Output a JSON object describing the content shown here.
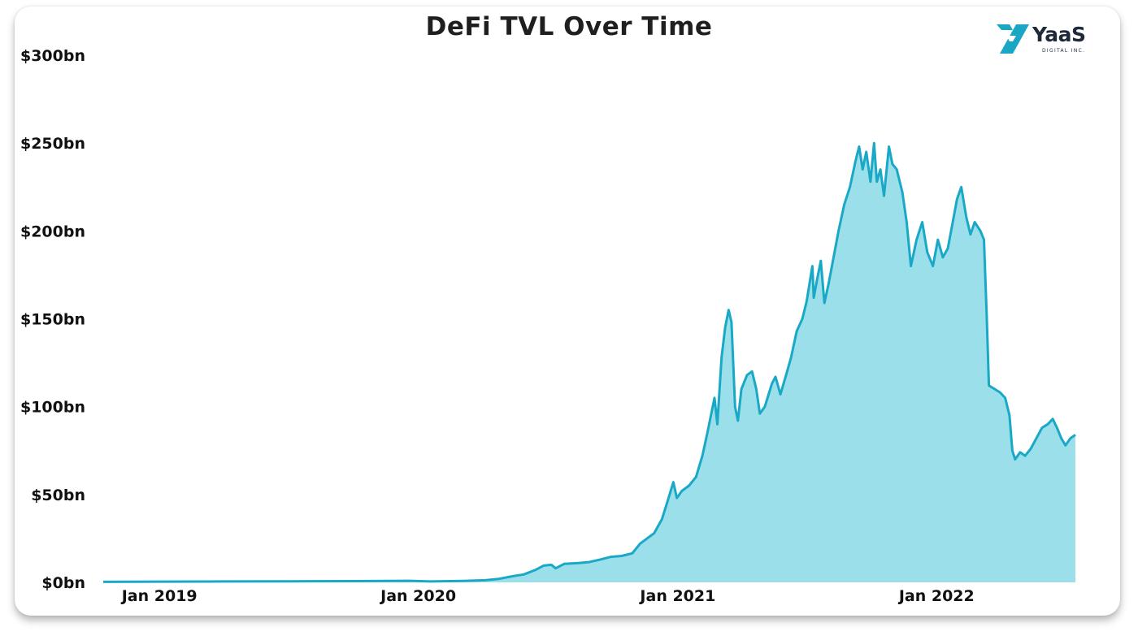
{
  "chart_data": {
    "type": "area",
    "title": "DeFi TVL Over Time",
    "xlabel": "",
    "ylabel": "",
    "ylim": [
      0,
      300
    ],
    "y_ticks": [
      0,
      50,
      100,
      150,
      200,
      250,
      300
    ],
    "y_tick_labels": [
      "$0bn",
      "$50bn",
      "$100bn",
      "$150bn",
      "$200bn",
      "$250bn",
      "$300bn"
    ],
    "x_ticks": [
      "2019-01-01",
      "2020-01-01",
      "2021-01-01",
      "2022-01-01"
    ],
    "x_tick_labels": [
      "Jan 2019",
      "Jan 2020",
      "Jan 2021",
      "Jan 2022"
    ],
    "xlim": [
      "2018-12-10",
      "2022-09-11"
    ],
    "grid": false,
    "legend": "none",
    "colors": {
      "line": "#19a9c6",
      "fill": "#9bdfea"
    },
    "series": [
      {
        "values": [
          [
            "2018-12-10",
            0.3
          ],
          [
            "2019-03-01",
            0.4
          ],
          [
            "2019-06-01",
            0.5
          ],
          [
            "2019-09-01",
            0.6
          ],
          [
            "2019-12-01",
            0.7
          ],
          [
            "2020-02-15",
            0.9
          ],
          [
            "2020-03-15",
            0.5
          ],
          [
            "2020-05-01",
            0.8
          ],
          [
            "2020-06-01",
            1.2
          ],
          [
            "2020-06-20",
            2.0
          ],
          [
            "2020-07-10",
            3.5
          ],
          [
            "2020-07-25",
            4.5
          ],
          [
            "2020-08-10",
            7.0
          ],
          [
            "2020-08-22",
            9.5
          ],
          [
            "2020-09-02",
            10.0
          ],
          [
            "2020-09-08",
            8.0
          ],
          [
            "2020-09-20",
            10.5
          ],
          [
            "2020-10-10",
            11.0
          ],
          [
            "2020-10-25",
            11.5
          ],
          [
            "2020-11-10",
            13.0
          ],
          [
            "2020-11-25",
            14.5
          ],
          [
            "2020-12-10",
            15.0
          ],
          [
            "2020-12-25",
            16.5
          ],
          [
            "2021-01-05",
            22.0
          ],
          [
            "2021-01-15",
            25.0
          ],
          [
            "2021-01-25",
            28.0
          ],
          [
            "2021-02-05",
            36.0
          ],
          [
            "2021-02-12",
            45.0
          ],
          [
            "2021-02-21",
            57.0
          ],
          [
            "2021-02-26",
            48.0
          ],
          [
            "2021-03-05",
            52.0
          ],
          [
            "2021-03-15",
            55.0
          ],
          [
            "2021-03-25",
            60.0
          ],
          [
            "2021-04-03",
            72.0
          ],
          [
            "2021-04-10",
            85.0
          ],
          [
            "2021-04-15",
            95.0
          ],
          [
            "2021-04-20",
            105.0
          ],
          [
            "2021-04-24",
            90.0
          ],
          [
            "2021-04-30",
            128.0
          ],
          [
            "2021-05-05",
            145.0
          ],
          [
            "2021-05-10",
            155.0
          ],
          [
            "2021-05-14",
            148.0
          ],
          [
            "2021-05-19",
            100.0
          ],
          [
            "2021-05-23",
            92.0
          ],
          [
            "2021-05-28",
            110.0
          ],
          [
            "2021-06-05",
            118.0
          ],
          [
            "2021-06-12",
            120.0
          ],
          [
            "2021-06-18",
            110.0
          ],
          [
            "2021-06-23",
            96.0
          ],
          [
            "2021-06-30",
            100.0
          ],
          [
            "2021-07-10",
            113.0
          ],
          [
            "2021-07-15",
            117.0
          ],
          [
            "2021-07-22",
            107.0
          ],
          [
            "2021-07-30",
            118.0
          ],
          [
            "2021-08-06",
            128.0
          ],
          [
            "2021-08-14",
            143.0
          ],
          [
            "2021-08-22",
            150.0
          ],
          [
            "2021-08-28",
            160.0
          ],
          [
            "2021-09-05",
            180.0
          ],
          [
            "2021-09-07",
            162.0
          ],
          [
            "2021-09-12",
            173.0
          ],
          [
            "2021-09-17",
            183.0
          ],
          [
            "2021-09-22",
            159.0
          ],
          [
            "2021-09-28",
            170.0
          ],
          [
            "2021-10-05",
            185.0
          ],
          [
            "2021-10-12",
            200.0
          ],
          [
            "2021-10-20",
            215.0
          ],
          [
            "2021-10-28",
            225.0
          ],
          [
            "2021-11-05",
            240.0
          ],
          [
            "2021-11-10",
            248.0
          ],
          [
            "2021-11-15",
            235.0
          ],
          [
            "2021-11-20",
            245.0
          ],
          [
            "2021-11-26",
            228.0
          ],
          [
            "2021-12-01",
            250.0
          ],
          [
            "2021-12-05",
            228.0
          ],
          [
            "2021-12-10",
            235.0
          ],
          [
            "2021-12-15",
            220.0
          ],
          [
            "2021-12-22",
            248.0
          ],
          [
            "2021-12-27",
            238.0
          ],
          [
            "2022-01-02",
            235.0
          ],
          [
            "2022-01-10",
            222.0
          ],
          [
            "2022-01-16",
            205.0
          ],
          [
            "2022-01-22",
            180.0
          ],
          [
            "2022-01-30",
            195.0
          ],
          [
            "2022-02-07",
            205.0
          ],
          [
            "2022-02-14",
            188.0
          ],
          [
            "2022-02-22",
            180.0
          ],
          [
            "2022-03-01",
            195.0
          ],
          [
            "2022-03-08",
            185.0
          ],
          [
            "2022-03-15",
            190.0
          ],
          [
            "2022-03-22",
            205.0
          ],
          [
            "2022-03-28",
            218.0
          ],
          [
            "2022-04-03",
            225.0
          ],
          [
            "2022-04-10",
            208.0
          ],
          [
            "2022-04-16",
            198.0
          ],
          [
            "2022-04-22",
            205.0
          ],
          [
            "2022-04-30",
            200.0
          ],
          [
            "2022-05-05",
            195.0
          ],
          [
            "2022-05-09",
            150.0
          ],
          [
            "2022-05-12",
            112.0
          ],
          [
            "2022-05-20",
            110.0
          ],
          [
            "2022-05-28",
            108.0
          ],
          [
            "2022-06-04",
            105.0
          ],
          [
            "2022-06-10",
            95.0
          ],
          [
            "2022-06-14",
            75.0
          ],
          [
            "2022-06-18",
            70.0
          ],
          [
            "2022-06-25",
            74.0
          ],
          [
            "2022-07-02",
            72.0
          ],
          [
            "2022-07-10",
            76.0
          ],
          [
            "2022-07-18",
            82.0
          ],
          [
            "2022-07-26",
            88.0
          ],
          [
            "2022-08-03",
            90.0
          ],
          [
            "2022-08-10",
            93.0
          ],
          [
            "2022-08-16",
            88.0
          ],
          [
            "2022-08-22",
            82.0
          ],
          [
            "2022-08-28",
            78.0
          ],
          [
            "2022-09-04",
            82.0
          ],
          [
            "2022-09-11",
            84.0
          ]
        ]
      }
    ]
  },
  "logo": {
    "name": "YaaS",
    "subtitle": "DIGITAL INC.",
    "icon": "yaas-logo-icon",
    "colors": {
      "mark": "#1aa7c4",
      "text": "#1e2a3a"
    }
  }
}
